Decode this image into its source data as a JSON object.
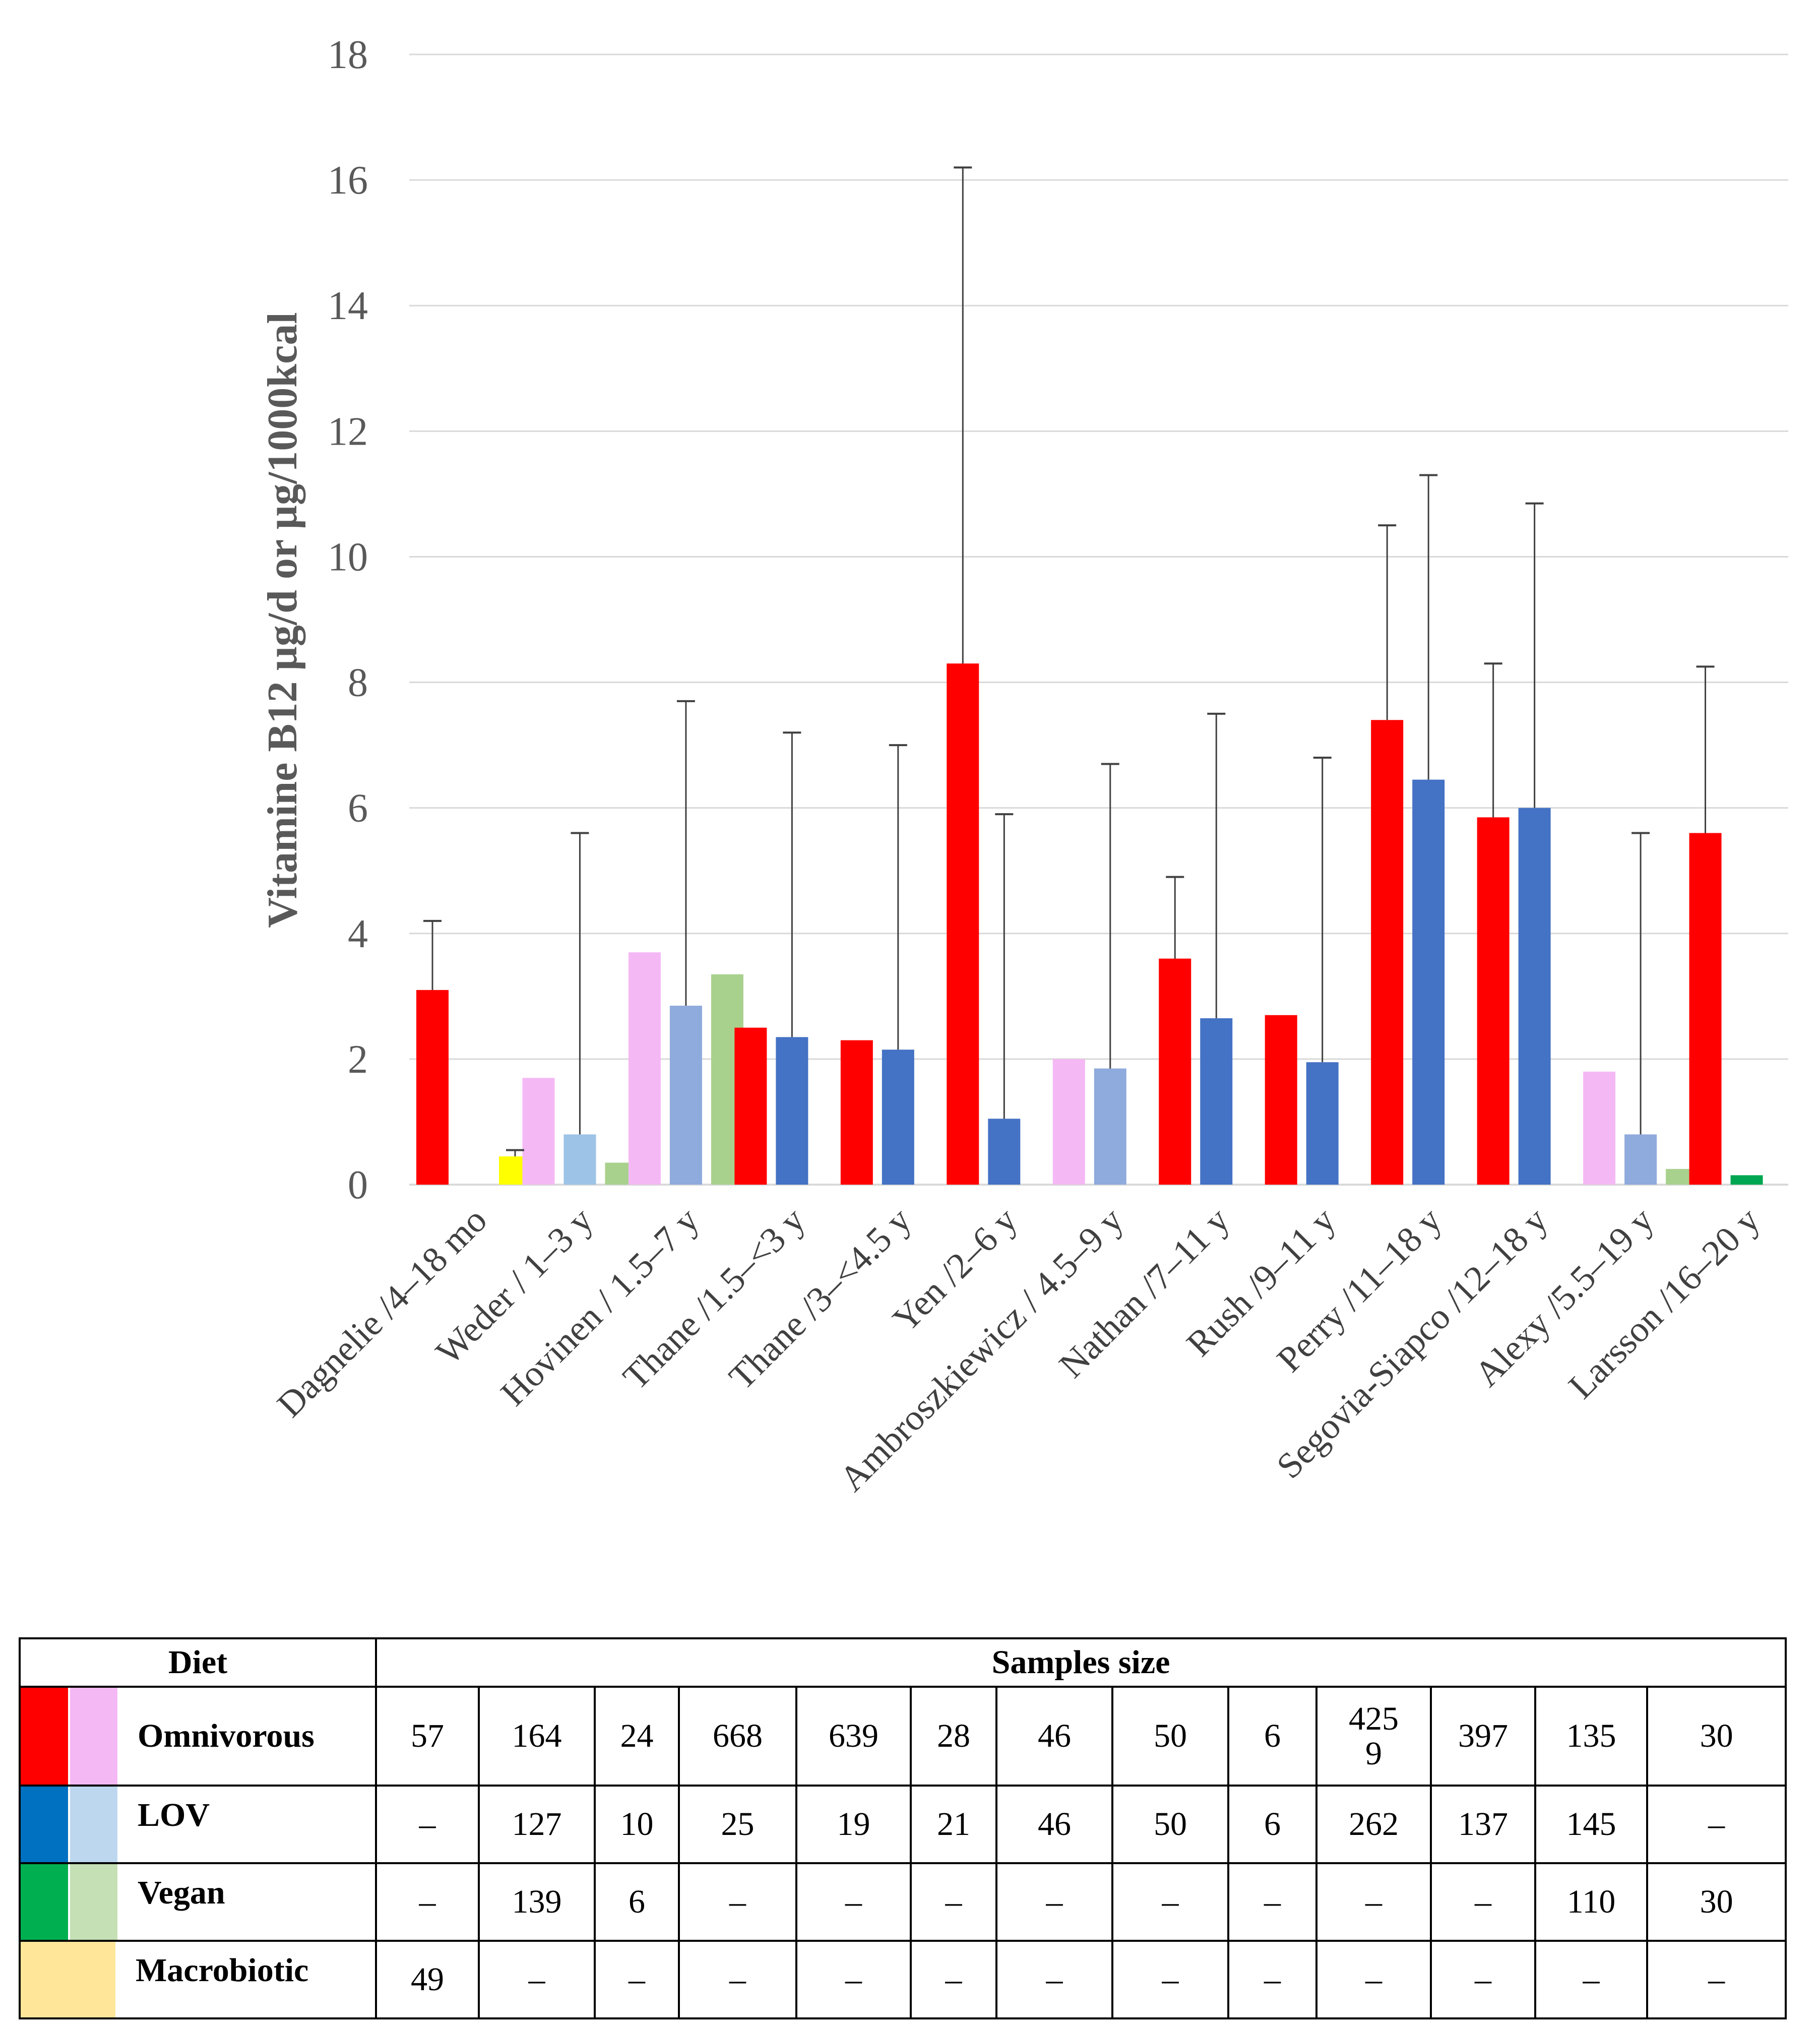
{
  "chart_data": {
    "type": "bar",
    "ylabel": "Vitamine B12 µg/d or µg/1000kcal",
    "ylim": [
      0,
      18
    ],
    "yticks": [
      0,
      2,
      4,
      6,
      8,
      10,
      12,
      14,
      16,
      18
    ],
    "grid": true,
    "categories": [
      "Dagnelie /4–18 mo",
      "Weder / 1–3 y",
      "Hovinen / 1.5–7 y",
      "Thane /1.5–<3 y",
      "Thane /3–<4.5 y",
      "Yen /2–6 y",
      "Ambroszkiewicz / 4.5–9 y",
      "Nathan /7–11 y",
      "Rush /9–11 y",
      "Perry /11–18 y",
      "Segovia-Siapco /12–18 y",
      "Alexy /5.5–19 y",
      "Larsson /16–20 y"
    ],
    "bars": [
      {
        "cat": 0,
        "slot": 0,
        "value": 3.1,
        "err": 4.2,
        "color": "#ff0000"
      },
      {
        "cat": 0,
        "slot": 2,
        "value": 0.45,
        "err": 0.55,
        "color": "#ffff00"
      },
      {
        "cat": 1,
        "slot": 0,
        "value": 1.7,
        "err": null,
        "color": "#f4b8f4"
      },
      {
        "cat": 1,
        "slot": 1,
        "value": 0.8,
        "err": 5.6,
        "color": "#9dc3e6"
      },
      {
        "cat": 1,
        "slot": 2,
        "value": 0.35,
        "err": null,
        "color": "#a9d18e"
      },
      {
        "cat": 2,
        "slot": 0,
        "value": 3.7,
        "err": null,
        "color": "#f4b8f4"
      },
      {
        "cat": 2,
        "slot": 1,
        "value": 2.85,
        "err": 7.7,
        "color": "#8faadc"
      },
      {
        "cat": 2,
        "slot": 2,
        "value": 3.35,
        "err": null,
        "color": "#a9d18e"
      },
      {
        "cat": 3,
        "slot": 0,
        "value": 2.5,
        "err": null,
        "color": "#ff0000"
      },
      {
        "cat": 3,
        "slot": 1,
        "value": 2.35,
        "err": 7.2,
        "color": "#4472c4"
      },
      {
        "cat": 4,
        "slot": 0,
        "value": 2.3,
        "err": null,
        "color": "#ff0000"
      },
      {
        "cat": 4,
        "slot": 1,
        "value": 2.15,
        "err": 7.0,
        "color": "#4472c4"
      },
      {
        "cat": 5,
        "slot": 0,
        "value": 8.3,
        "err": 16.2,
        "color": "#ff0000"
      },
      {
        "cat": 5,
        "slot": 1,
        "value": 1.05,
        "err": 5.9,
        "color": "#4472c4"
      },
      {
        "cat": 6,
        "slot": 0,
        "value": 2.0,
        "err": null,
        "color": "#f4b8f4"
      },
      {
        "cat": 6,
        "slot": 1,
        "value": 1.85,
        "err": 6.7,
        "color": "#8faadc"
      },
      {
        "cat": 7,
        "slot": 0,
        "value": 3.6,
        "err": 4.9,
        "color": "#ff0000"
      },
      {
        "cat": 7,
        "slot": 1,
        "value": 2.65,
        "err": 7.5,
        "color": "#4472c4"
      },
      {
        "cat": 8,
        "slot": 0,
        "value": 2.7,
        "err": null,
        "color": "#ff0000"
      },
      {
        "cat": 8,
        "slot": 1,
        "value": 1.95,
        "err": 6.8,
        "color": "#4472c4"
      },
      {
        "cat": 9,
        "slot": 0,
        "value": 7.4,
        "err": 10.5,
        "color": "#ff0000"
      },
      {
        "cat": 9,
        "slot": 1,
        "value": 6.45,
        "err": 11.3,
        "color": "#4472c4"
      },
      {
        "cat": 10,
        "slot": 0,
        "value": 5.85,
        "err": 8.3,
        "color": "#ff0000"
      },
      {
        "cat": 10,
        "slot": 1,
        "value": 6.0,
        "err": 10.85,
        "color": "#4472c4"
      },
      {
        "cat": 11,
        "slot": 0,
        "value": 1.8,
        "err": null,
        "color": "#f4b8f4"
      },
      {
        "cat": 11,
        "slot": 1,
        "value": 0.8,
        "err": 5.6,
        "color": "#8faadc"
      },
      {
        "cat": 11,
        "slot": 2,
        "value": 0.25,
        "err": null,
        "color": "#a9d18e"
      },
      {
        "cat": 12,
        "slot": 0,
        "value": 5.6,
        "err": 8.25,
        "color": "#ff0000"
      },
      {
        "cat": 12,
        "slot": 1,
        "value": 0.15,
        "err": null,
        "color": "#00a651"
      }
    ]
  },
  "table": {
    "diet_header": "Diet",
    "samples_header": "Samples size",
    "rows": [
      {
        "name": "Omnivorous",
        "swatches": [
          "#ff0000",
          "#f4b8f4"
        ],
        "values": [
          "57",
          "164",
          "24",
          "668",
          "639",
          "28",
          "46",
          "50",
          "6",
          "425\n9",
          "397",
          "135",
          "30"
        ]
      },
      {
        "name": "LOV",
        "swatches": [
          "#0070c0",
          "#bdd7ee"
        ],
        "values": [
          "–",
          "127",
          "10",
          "25",
          "19",
          "21",
          "46",
          "50",
          "6",
          "262",
          "137",
          "145",
          "–"
        ]
      },
      {
        "name": "Vegan",
        "swatches": [
          "#00b050",
          "#c5e0b4"
        ],
        "values": [
          "–",
          "139",
          "6",
          "–",
          "–",
          "–",
          "–",
          "–",
          "–",
          "–",
          "–",
          "110",
          "30"
        ]
      },
      {
        "name": "Macrobiotic",
        "swatches": [
          "#ffe699"
        ],
        "values": [
          "49",
          "–",
          "–",
          "–",
          "–",
          "–",
          "–",
          "–",
          "–",
          "–",
          "–",
          "–",
          "–"
        ]
      }
    ]
  }
}
